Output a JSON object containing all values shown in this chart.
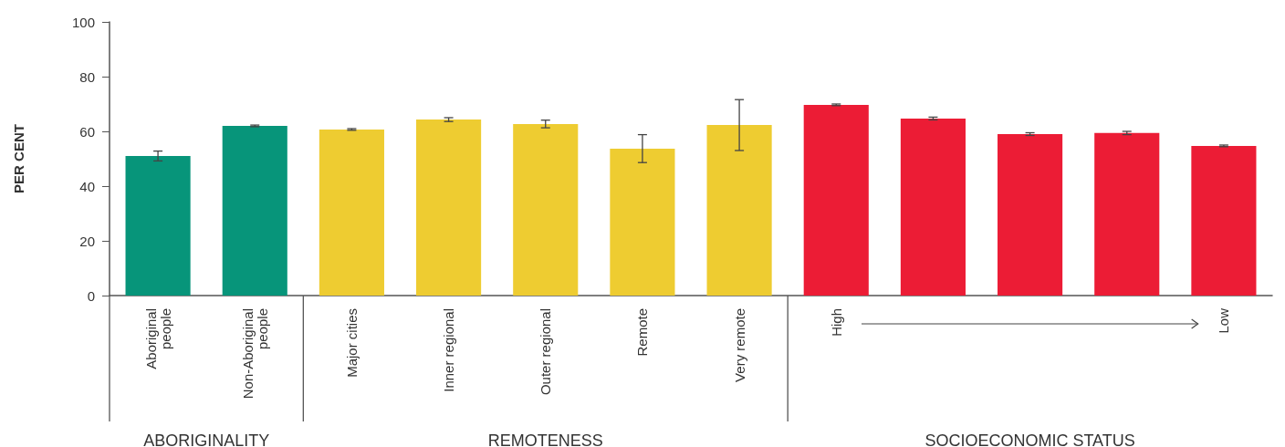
{
  "chart_data": {
    "type": "bar",
    "ylabel": "PER CENT",
    "categories": [
      "Aboriginal\npeople",
      "Non-Aboriginal\npeople",
      "Major cities",
      "Inner regional",
      "Outer regional",
      "Remote",
      "Very remote",
      "High",
      null,
      null,
      null,
      "Low"
    ],
    "values": [
      51.0,
      62.0,
      60.7,
      64.3,
      62.7,
      53.7,
      62.3,
      69.7,
      64.7,
      59.0,
      59.4,
      54.7
    ],
    "colors": [
      "#07957a",
      "#07957a",
      "#eecc31",
      "#eecc31",
      "#eecc31",
      "#eecc31",
      "#eecc31",
      "#ec1c35",
      "#ec1c35",
      "#ec1c35",
      "#ec1c35",
      "#ec1c35"
    ],
    "errors": [
      1.8,
      0.3,
      0.3,
      0.7,
      1.4,
      5.1,
      9.3,
      0.3,
      0.5,
      0.5,
      0.6,
      0.3
    ],
    "ylim": [
      0,
      100
    ],
    "yticks": [
      0,
      20,
      40,
      60,
      80,
      100
    ],
    "annotations": [
      "ABORIGINALITY",
      "REMOTENESS",
      "SOCIOECONOMIC STATUS"
    ]
  }
}
